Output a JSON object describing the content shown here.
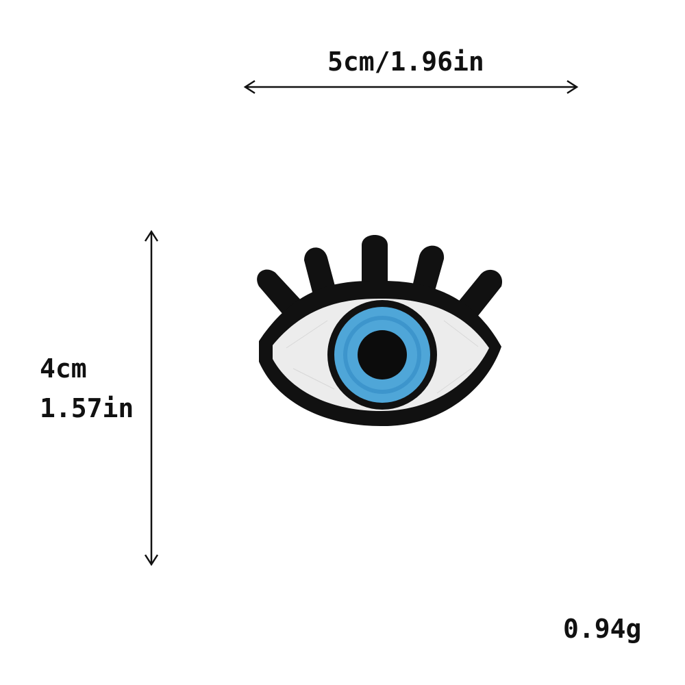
{
  "dimensions": {
    "width_label": "5cm/1.96in",
    "height_cm_label": "4cm",
    "height_in_label": "1.57in"
  },
  "weight_label": "0.94g",
  "product": {
    "icon": "eye-patch-icon",
    "colors": {
      "outline": "#111111",
      "sclera": "#ececec",
      "iris": "#4fa6d8",
      "iris_inner": "#2f86c2",
      "pupil": "#0c0c0c"
    }
  }
}
